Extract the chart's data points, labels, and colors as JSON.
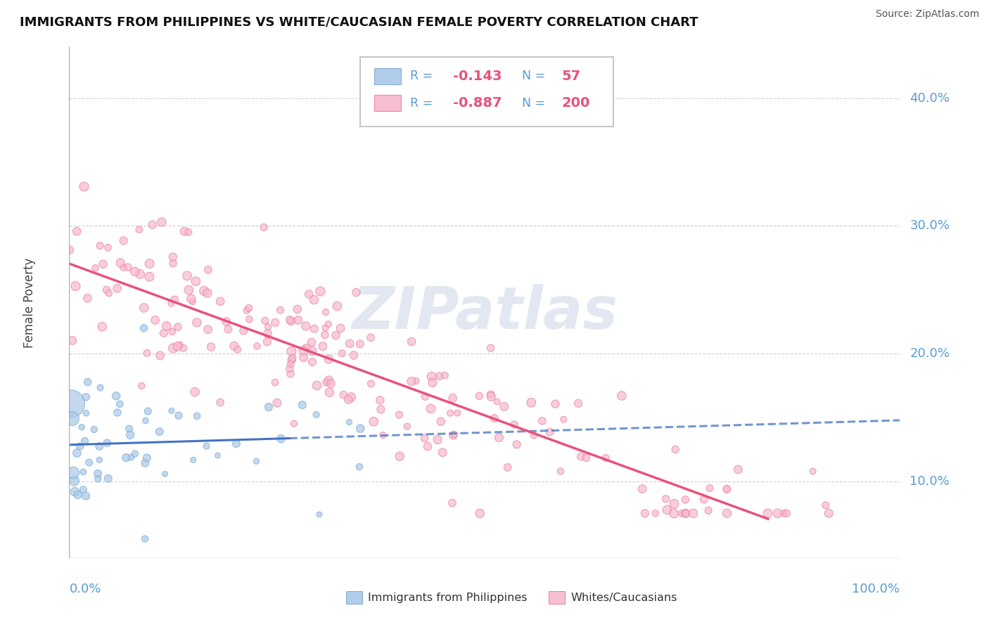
{
  "title": "IMMIGRANTS FROM PHILIPPINES VS WHITE/CAUCASIAN FEMALE POVERTY CORRELATION CHART",
  "source": "Source: ZipAtlas.com",
  "ylabel": "Female Poverty",
  "y_ticks": [
    0.1,
    0.2,
    0.3,
    0.4
  ],
  "y_tick_labels": [
    "10.0%",
    "20.0%",
    "30.0%",
    "40.0%"
  ],
  "xlim": [
    0.0,
    1.0
  ],
  "ylim": [
    0.04,
    0.44
  ],
  "series1": {
    "label": "Immigrants from Philippines",
    "R": -0.143,
    "N": 57,
    "marker_color": "#aac8e8",
    "edge_color": "#7aaad4",
    "seed": 42
  },
  "series2": {
    "label": "Whites/Caucasians",
    "R": -0.887,
    "N": 200,
    "marker_color": "#f8b8cc",
    "edge_color": "#e880a0",
    "seed": 77
  },
  "watermark": "ZIPatlas",
  "background_color": "#ffffff",
  "grid_color": "#cccccc",
  "title_color": "#111111",
  "axis_label_color": "#5b9bd5",
  "legend_label_color": "#5b9bd5",
  "legend_val_color": "#e8527a",
  "line_color1": "#4472c4",
  "line_color2": "#e8527a"
}
